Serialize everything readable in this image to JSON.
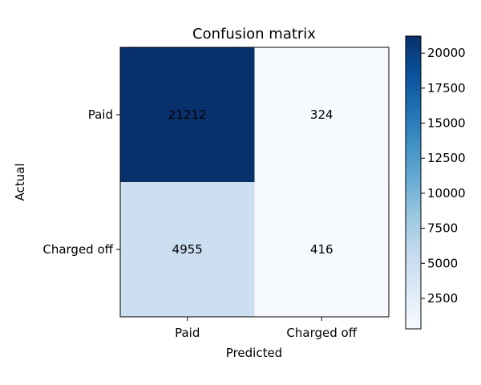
{
  "chart_data": {
    "type": "heatmap",
    "title": "Confusion matrix",
    "xlabel": "Predicted",
    "ylabel": "Actual",
    "x_categories": [
      "Paid",
      "Charged off"
    ],
    "y_categories": [
      "Paid",
      "Charged off"
    ],
    "values": [
      [
        21212,
        324
      ],
      [
        4955,
        416
      ]
    ],
    "colormap": "Blues",
    "colorbar": {
      "min": 324,
      "max": 21212,
      "ticks": [
        2500,
        5000,
        7500,
        10000,
        12500,
        15000,
        17500,
        20000
      ],
      "tick_labels": [
        "2500",
        "5000",
        "7500",
        "10000",
        "12500",
        "15000",
        "17500",
        "20000"
      ]
    },
    "grid": false
  }
}
